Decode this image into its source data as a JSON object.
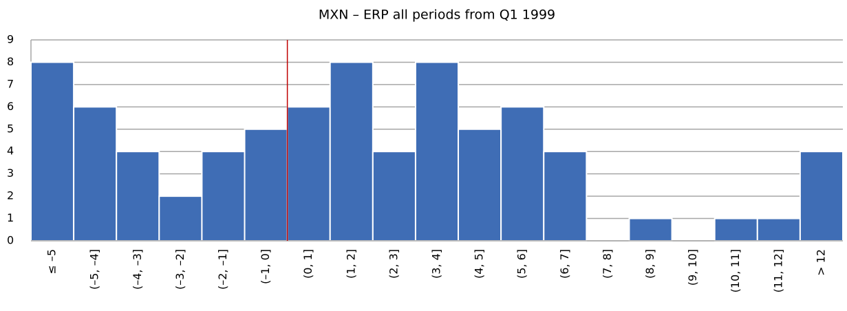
{
  "chart_data": {
    "type": "bar",
    "title": "MXN – ERP all periods from Q1 1999",
    "categories": [
      "≤ –5",
      "(–5, –4]",
      "(–4, –3]",
      "(–3, –2]",
      "(–2, –1]",
      "(–1, 0]",
      "(0, 1]",
      "(1, 2]",
      "(2, 3]",
      "(3, 4]",
      "(4, 5]",
      "(5, 6]",
      "(6, 7]",
      "(7, 8]",
      "(8, 9]",
      "(9, 10]",
      "(10, 11]",
      "(11, 12]",
      "> 12"
    ],
    "values": [
      8,
      6,
      4,
      2,
      4,
      5,
      6,
      8,
      4,
      8,
      5,
      6,
      4,
      0,
      1,
      0,
      1,
      1,
      4
    ],
    "color": "#3f6db5",
    "ylim": [
      0,
      9
    ],
    "yticks": [
      0,
      1,
      2,
      3,
      4,
      5,
      6,
      7,
      8,
      9
    ],
    "grid": true,
    "reference_line": {
      "after_index": 5,
      "color": "#c00000"
    }
  }
}
